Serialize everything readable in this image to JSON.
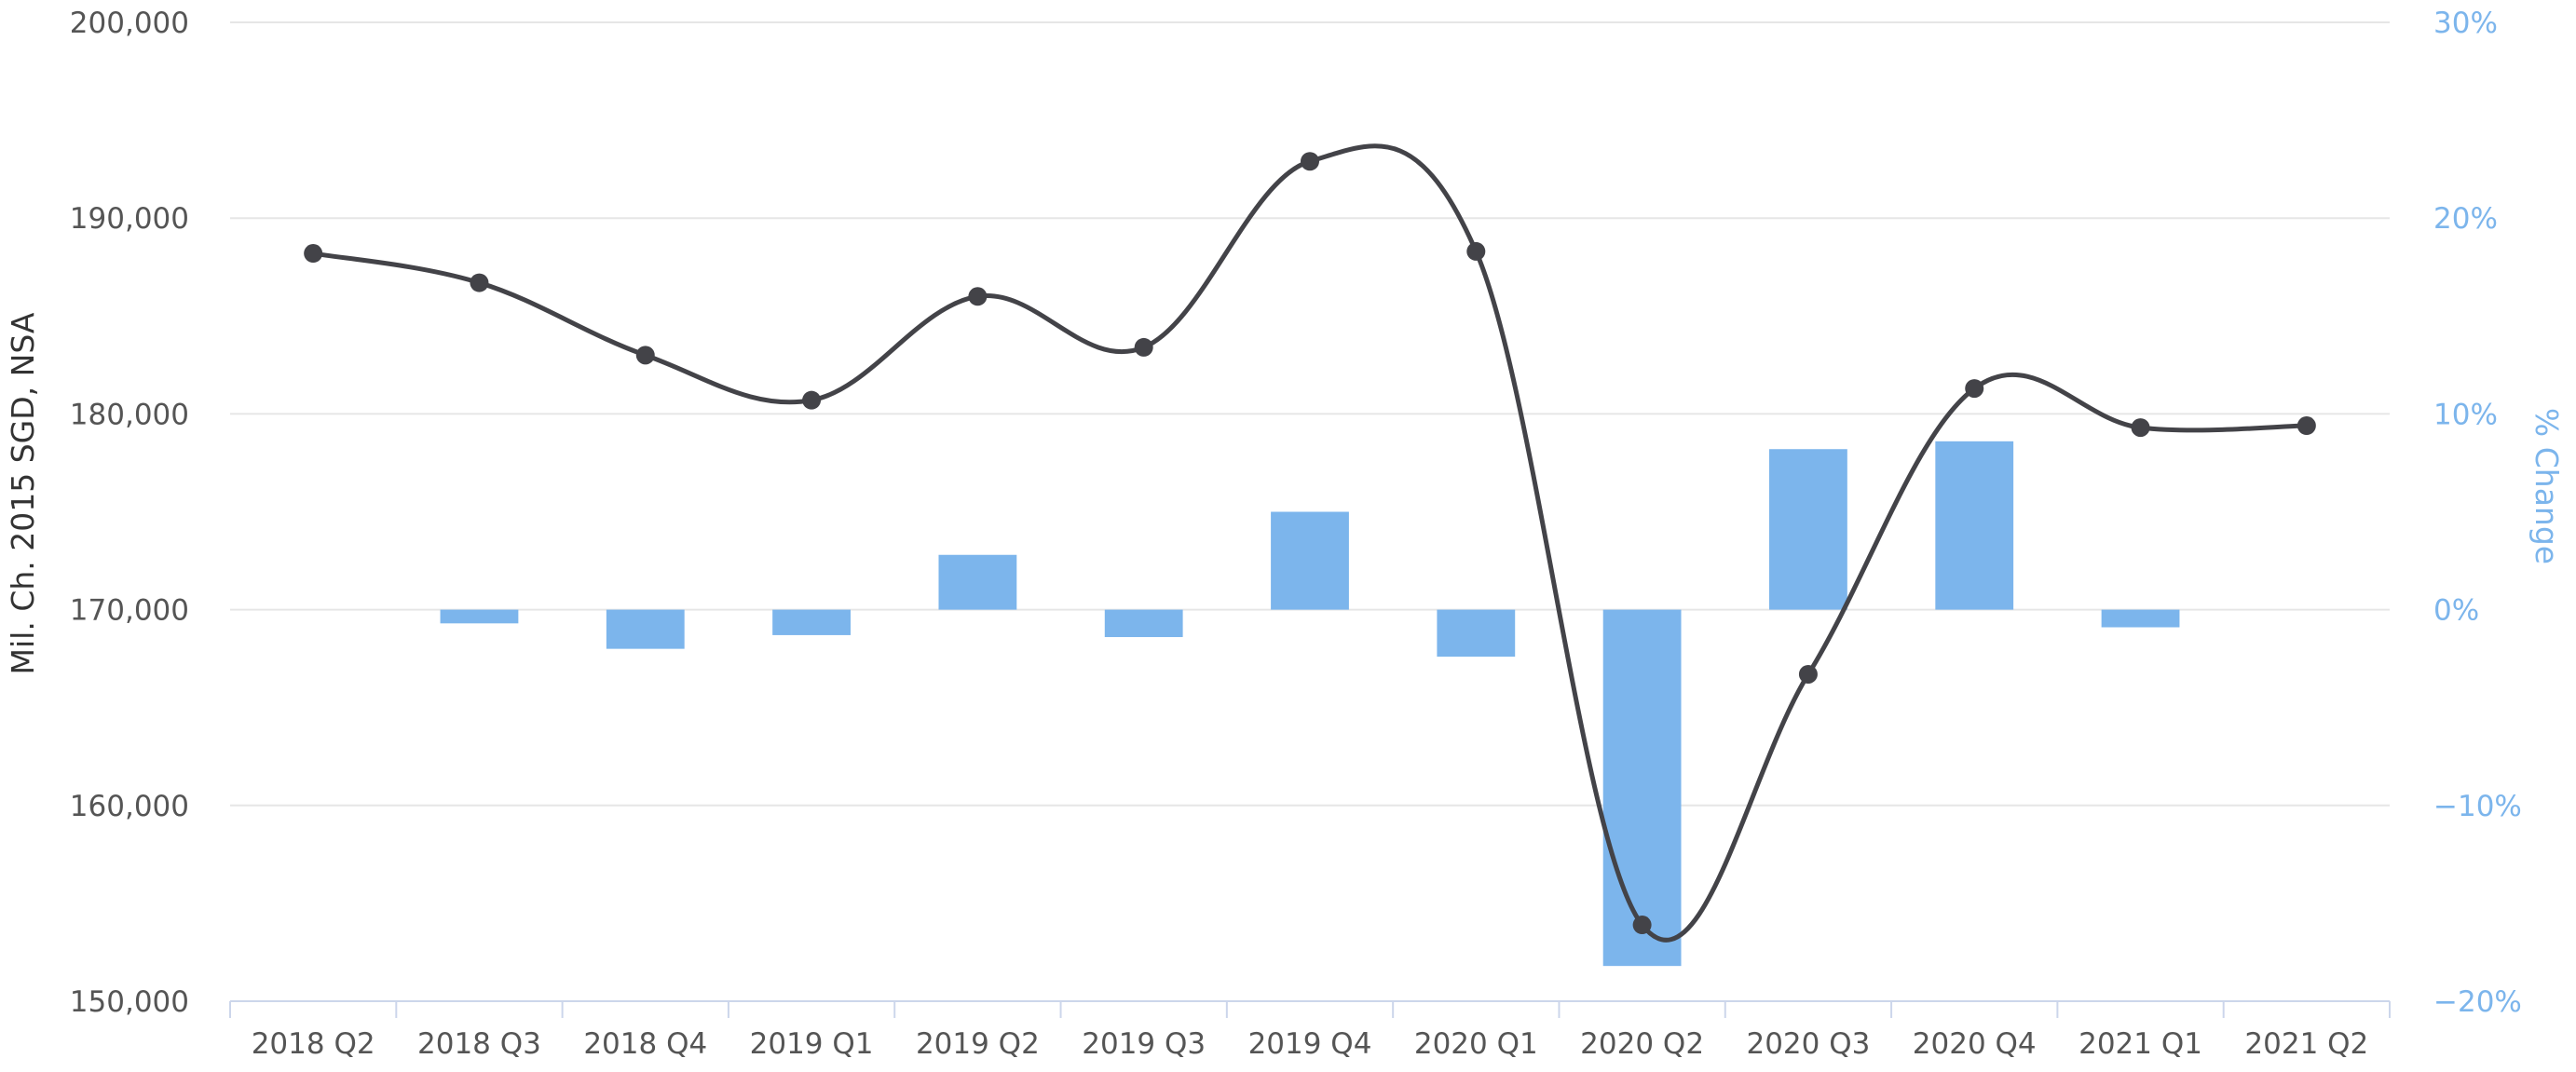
{
  "chart_data": {
    "type": "bar",
    "categories": [
      "2018 Q2",
      "2018 Q3",
      "2018 Q4",
      "2019 Q1",
      "2019 Q2",
      "2019 Q3",
      "2019 Q4",
      "2020 Q1",
      "2020 Q2",
      "2020 Q3",
      "2020 Q4",
      "2021 Q1",
      "2021 Q2"
    ],
    "series": [
      {
        "type": "line",
        "axis": "left",
        "color": "#434348",
        "values": [
          188200,
          186700,
          183000,
          180700,
          186000,
          183400,
          192900,
          188300,
          153900,
          166700,
          181300,
          179300,
          179400
        ]
      },
      {
        "type": "bar",
        "axis": "right",
        "color": "#7cb5ec",
        "values": [
          null,
          -0.7,
          -2.0,
          -1.3,
          2.8,
          -1.4,
          5.0,
          -2.4,
          -18.2,
          8.2,
          8.6,
          -0.9,
          null
        ]
      }
    ],
    "y_left": {
      "label": "Mil. Ch. 2015 SGD, NSA",
      "min": 150000,
      "max": 200000,
      "ticks": [
        "150,000",
        "160,000",
        "170,000",
        "180,000",
        "190,000",
        "200,000"
      ]
    },
    "y_right": {
      "label": "% Change",
      "min": -20,
      "max": 30,
      "ticks": [
        "−20%",
        "−10%",
        "0%",
        "10%",
        "20%",
        "30%"
      ]
    },
    "grid": true,
    "legend": "none"
  }
}
